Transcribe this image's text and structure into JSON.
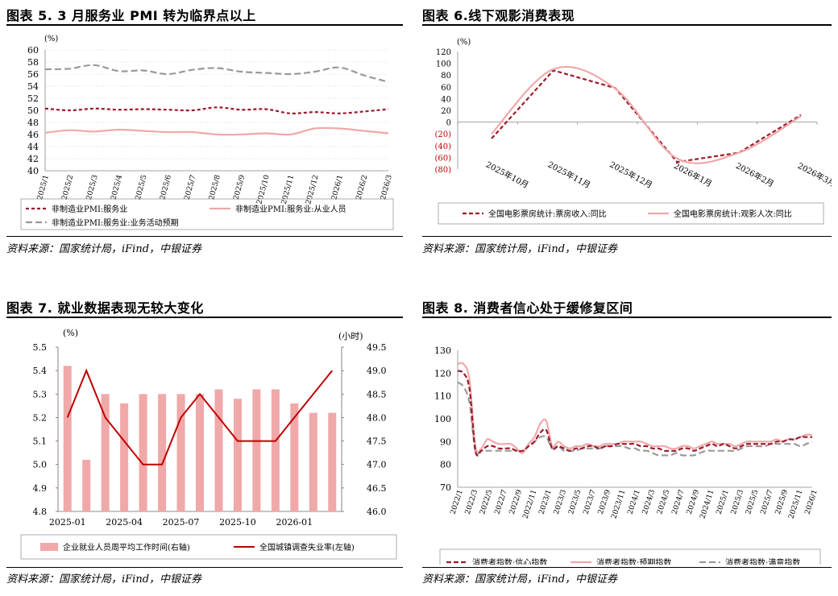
{
  "panels": [
    {
      "title": "图表 5. 3 月服务业 PMI 转为临界点以上",
      "source": "资料来源：国家统计局，iFind，中银证券",
      "chart": {
        "type": "line",
        "yunit": "(%)",
        "ylim": [
          40,
          60
        ],
        "yticks": [
          "40",
          "42",
          "44",
          "46",
          "48",
          "50",
          "52",
          "54",
          "56",
          "58",
          "60"
        ],
        "categories": [
          "2025/1",
          "2025/2",
          "2025/3",
          "2025/4",
          "2025/5",
          "2025/6",
          "2025/7",
          "2025/8",
          "2025/9",
          "2025/10",
          "2025/11",
          "2025/12",
          "2026/1",
          "2026/2",
          "2026/3"
        ],
        "grid": true,
        "series": [
          {
            "name": "非制造业PMI:服务业",
            "color": "#9b1b2c",
            "dash": "4,3",
            "width": 2.2,
            "values": [
              50.3,
              50.0,
              50.3,
              50.1,
              50.2,
              50.1,
              50.0,
              50.5,
              50.1,
              50.2,
              49.5,
              49.7,
              49.5,
              49.8,
              50.2
            ]
          },
          {
            "name": "非制造业PMI:服务业:从业人员",
            "color": "#f0a8a8",
            "dash": "",
            "width": 2.2,
            "values": [
              46.3,
              46.7,
              46.5,
              46.8,
              46.6,
              46.4,
              46.4,
              46.0,
              46.0,
              46.2,
              46.0,
              47.0,
              47.0,
              46.6,
              46.2
            ]
          },
          {
            "name": "非制造业PMI:服务业:业务活动预期",
            "color": "#999999",
            "dash": "8,4",
            "width": 2.2,
            "values": [
              56.8,
              56.9,
              57.5,
              56.5,
              56.6,
              56.0,
              56.7,
              57.0,
              56.4,
              56.2,
              56.0,
              56.4,
              57.1,
              55.8,
              54.7
            ]
          }
        ]
      }
    },
    {
      "title": "图表 6.线下观影消费表现",
      "source": "资料来源：国家统计局，iFind，中银证券",
      "chart": {
        "type": "line",
        "yunit": "(%)",
        "ylim": [
          -80,
          120
        ],
        "yticks": [
          "(80)",
          "(60)",
          "(40)",
          "(20)",
          "0",
          "20",
          "40",
          "60",
          "80",
          "100",
          "120"
        ],
        "categories": [
          "2025年10月",
          "2025年11月",
          "2025年12月",
          "2026年1月",
          "2026年2月",
          "2026年3月"
        ],
        "grid": false,
        "series": [
          {
            "name": "全国电影票房统计:票房收入:同比",
            "color": "#9b1b2c",
            "dash": "5,3",
            "width": 2.2,
            "values": [
              -28,
              88,
              58,
              -68,
              -52,
              12
            ]
          },
          {
            "name": "全国电影票房统计:观影人次:同比",
            "color": "#f0a8a8",
            "dash": "",
            "width": 2.2,
            "values": [
              -20,
              90,
              57,
              -62,
              -52,
              10
            ]
          }
        ]
      }
    },
    {
      "title": "图表 7. 就业数据表现无较大变化",
      "source": "资料来源：国家统计局，iFind，中银证券",
      "chart": {
        "type": "bar+line",
        "yunit_left": "(%)",
        "yunit_right": "(小时)",
        "ylim_left": [
          4.8,
          5.5
        ],
        "ylim_right": [
          46.0,
          49.5
        ],
        "yticks_left": [
          "4.8",
          "4.9",
          "5.0",
          "5.1",
          "5.2",
          "5.3",
          "5.4",
          "5.5"
        ],
        "yticks_right": [
          "46.0",
          "46.5",
          "47.0",
          "47.5",
          "48.0",
          "48.5",
          "49.0",
          "49.5"
        ],
        "xticks": [
          "2025-01",
          "2025-04",
          "2025-07",
          "2025-10",
          "2026-01"
        ],
        "grid": false,
        "series": [
          {
            "name": "企业就业人员周平均工作时间(右轴)",
            "type": "bar",
            "color": "#f0a8a8",
            "values": [
              49.1,
              47.1,
              48.5,
              48.3,
              48.5,
              48.5,
              48.5,
              48.5,
              48.6,
              48.4,
              48.6,
              48.6,
              48.3,
              48.1,
              48.1
            ]
          },
          {
            "name": "全国城镇调查失业率(左轴)",
            "type": "line",
            "color": "#c00000",
            "values": [
              5.2,
              5.4,
              5.2,
              5.1,
              5.0,
              5.0,
              5.2,
              5.3,
              5.2,
              5.1,
              5.1,
              5.1,
              5.2,
              5.3,
              5.4
            ]
          }
        ]
      }
    },
    {
      "title": "图表 8. 消费者信心处于缓修复区间",
      "source": "资料来源：国家统计局，iFind，中银证券",
      "chart": {
        "type": "line",
        "ylim": [
          70,
          130
        ],
        "yticks": [
          "70",
          "80",
          "90",
          "100",
          "110",
          "120",
          "130"
        ],
        "xticks": [
          "2022/1",
          "2022/3",
          "2022/5",
          "2022/7",
          "2022/9",
          "2022/11",
          "2023/1",
          "2023/3",
          "2023/5",
          "2023/7",
          "2023/9",
          "2023/11",
          "2024/1",
          "2024/3",
          "2024/5",
          "2024/7",
          "2024/9",
          "2024/11",
          "2025/1",
          "2025/3",
          "2025/5",
          "2025/7",
          "2025/9",
          "2025/11",
          "2026/1"
        ],
        "grid": false,
        "series": [
          {
            "name": "消费者指数:信心指数",
            "color": "#9b1b2c",
            "dash": "6,3",
            "width": 2.2,
            "values": [
              121,
              120,
              113,
              86,
              86,
              88,
              88,
              87,
              87,
              87,
              86,
              86,
              88,
              90,
              94,
              95,
              87,
              88,
              87,
              86,
              87,
              87,
              88,
              88,
              87,
              88,
              88,
              89,
              89,
              89,
              89,
              88,
              88,
              87,
              87,
              86,
              86,
              86,
              87,
              87,
              86,
              87,
              88,
              89,
              88,
              89,
              88,
              87,
              88,
              89,
              89,
              89,
              89,
              89,
              90,
              90,
              91,
              91,
              92,
              92,
              92
            ]
          },
          {
            "name": "消费者指数:预期指数",
            "color": "#f0a8a8",
            "dash": "",
            "width": 2.2,
            "values": [
              124,
              124,
              117,
              88,
              87,
              91,
              90,
              89,
              89,
              89,
              87,
              85,
              89,
              92,
              98,
              99,
              88,
              90,
              88,
              87,
              88,
              88,
              89,
              88,
              88,
              89,
              89,
              89,
              90,
              90,
              90,
              90,
              89,
              88,
              88,
              88,
              87,
              87,
              88,
              88,
              87,
              88,
              89,
              90,
              89,
              89,
              89,
              88,
              89,
              90,
              90,
              90,
              90,
              90,
              91,
              90,
              91,
              91,
              92,
              93,
              93
            ]
          },
          {
            "name": "消费者指数:满意指数",
            "color": "#999999",
            "dash": "8,4",
            "width": 2.2,
            "values": [
              116,
              114,
              107,
              86,
              86,
              86,
              86,
              86,
              86,
              86,
              86,
              86,
              88,
              90,
              92,
              92,
              87,
              88,
              86,
              86,
              86,
              87,
              87,
              87,
              87,
              88,
              88,
              88,
              88,
              87,
              87,
              86,
              86,
              85,
              84,
              84,
              84,
              85,
              84,
              84,
              84,
              85,
              86,
              86,
              86,
              86,
              86,
              86,
              87,
              88,
              88,
              88,
              88,
              89,
              89,
              89,
              89,
              89,
              88,
              89,
              90
            ]
          }
        ]
      }
    }
  ]
}
